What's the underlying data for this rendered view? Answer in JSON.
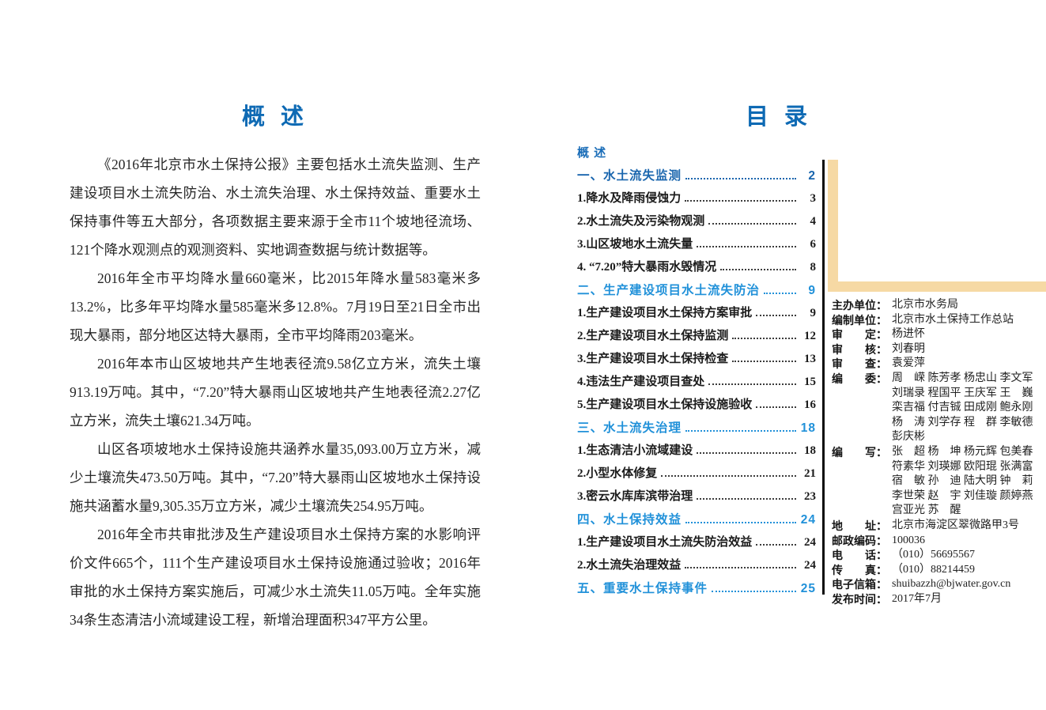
{
  "colors": {
    "title_blue": "#0e6ab4",
    "toc_chapter_blue": "#2191d9",
    "toc_chapter_blue_dark": "#1a66ae",
    "ribbon_tan": "#f6d9a4",
    "divider_black": "#0b0b0b",
    "body_text": "#262626"
  },
  "left_page": {
    "title": "概 述",
    "paragraphs": [
      "《2016年北京市水土保持公报》主要包括水土流失监测、生产建设项目水土流失防治、水土流失治理、水土保持效益、重要水土保持事件等五大部分，各项数据主要来源于全市11个坡地径流场、121个降水观测点的观测资料、实地调查数据与统计数据等。",
      "2016年全市平均降水量660毫米，比2015年降水量583毫米多13.2%，比多年平均降水量585毫米多12.8%。7月19日至21日全市出现大暴雨，部分地区达特大暴雨，全市平均降雨203毫米。",
      "2016年本市山区坡地共产生地表径流9.58亿立方米，流失土壤913.19万吨。其中，“7.20”特大暴雨山区坡地共产生地表径流2.27亿立方米，流失土壤621.34万吨。",
      "山区各项坡地水土保持设施共涵养水量35,093.00万立方米，减少土壤流失473.50万吨。其中，“7.20”特大暴雨山区坡地水土保持设施共涵蓄水量9,305.35万立方米，减少土壤流失254.95万吨。",
      "2016年全市共审批涉及生产建设项目水土保持方案的水影响评价文件665个，111个生产建设项目水土保持设施通过验收；2016年审批的水土保持方案实施后，可减少水土流失11.05万吨。全年实施34条生态清洁小流域建设工程，新增治理面积347平方公里。"
    ]
  },
  "right_page": {
    "title": "目 录",
    "toc": [
      {
        "label": "概 述",
        "page": "",
        "style": "overview"
      },
      {
        "label": "一、水土流失监测",
        "page": "2",
        "style": "chapter-dark"
      },
      {
        "label": "1.降水及降雨侵蚀力",
        "page": "3",
        "style": "item"
      },
      {
        "label": "2.水土流失及污染物观测",
        "page": "4",
        "style": "item"
      },
      {
        "label": "3.山区坡地水土流失量",
        "page": "6",
        "style": "item"
      },
      {
        "label": "4. “7.20”特大暴雨水毁情况",
        "page": "8",
        "style": "item"
      },
      {
        "label": "二、生产建设项目水土流失防治",
        "page": "9",
        "style": "chapter"
      },
      {
        "label": "1.生产建设项目水土保持方案审批",
        "page": "9",
        "style": "item"
      },
      {
        "label": "2.生产建设项目水土保持监测",
        "page": "12",
        "style": "item"
      },
      {
        "label": "3.生产建设项目水土保持检查",
        "page": "13",
        "style": "item"
      },
      {
        "label": "4.违法生产建设项目查处",
        "page": "15",
        "style": "item"
      },
      {
        "label": "5.生产建设项目水土保持设施验收",
        "page": "16",
        "style": "item"
      },
      {
        "label": "三、水土流失治理",
        "page": "18",
        "style": "chapter"
      },
      {
        "label": "1.生态清洁小流域建设",
        "page": "18",
        "style": "item"
      },
      {
        "label": "2.小型水体修复",
        "page": "21",
        "style": "item"
      },
      {
        "label": "3.密云水库库滨带治理",
        "page": "23",
        "style": "item"
      },
      {
        "label": "四、水土保持效益",
        "page": "24",
        "style": "chapter"
      },
      {
        "label": "1.生产建设项目水土流失防治效益",
        "page": "24",
        "style": "item"
      },
      {
        "label": "2.水土流失治理效益",
        "page": "24",
        "style": "item"
      },
      {
        "label": "五、重要水土保持事件",
        "page": "25",
        "style": "chapter"
      }
    ],
    "colophon": {
      "rows": [
        {
          "label": "主办单位：",
          "value_lines": [
            "北京市水务局"
          ]
        },
        {
          "label": "编制单位：",
          "value_lines": [
            "北京市水土保持工作总站"
          ]
        },
        {
          "label": "审　　定：",
          "value_lines": [
            "杨进怀"
          ]
        },
        {
          "label": "审　　核：",
          "value_lines": [
            "刘春明"
          ]
        },
        {
          "label": "审　　查：",
          "value_lines": [
            "袁爱萍"
          ]
        },
        {
          "label": "编　　委：",
          "value_lines": [
            "周　嵘 陈芳孝 杨忠山 李文军",
            "刘瑞录 程国平 王庆军 王　巍",
            "栾吉福 付吉铖 田成刚 鲍永刚",
            "杨　涛 刘学存 程　群 李敏德",
            "彭庆彬"
          ]
        },
        {
          "label": "编　　写：",
          "value_lines": [
            "张　超 杨　坤 杨元辉 包美春",
            "符素华 刘瑛娜 欧阳琨 张满富",
            "宿　敏 孙　迪 陆大明 钟　莉",
            "李世荣 赵　宇 刘佳璇 颜婷燕",
            "宫亚光 苏　醒"
          ]
        },
        {
          "label": "地　　址：",
          "value_lines": [
            "北京市海淀区翠微路甲3号"
          ]
        },
        {
          "label": "邮政编码：",
          "value_lines": [
            "100036"
          ]
        },
        {
          "label": "电　　话：",
          "value_lines": [
            "（010）56695567"
          ]
        },
        {
          "label": "传　　真：",
          "value_lines": [
            "（010）88214459"
          ]
        },
        {
          "label": "电子信箱：",
          "value_lines": [
            "shuibazzh@bjwater.gov.cn"
          ]
        },
        {
          "label": "发布时间：",
          "value_lines": [
            "2017年7月"
          ]
        }
      ]
    }
  }
}
